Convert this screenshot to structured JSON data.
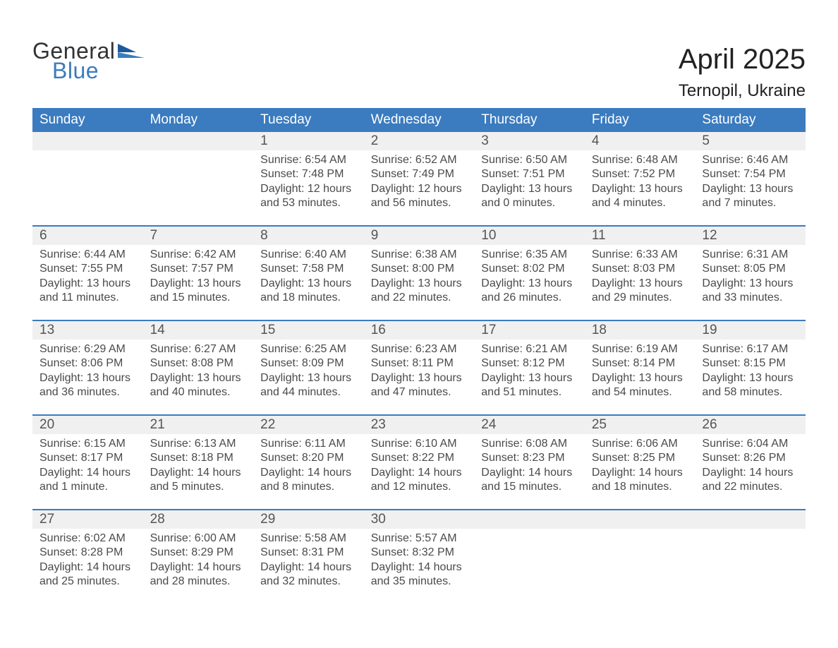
{
  "brand": {
    "word1": "General",
    "word2": "Blue",
    "color_primary": "#3b7bbf",
    "color_dark": "#1c5a9a",
    "text_color": "#333333"
  },
  "title": "April 2025",
  "location": "Ternopil, Ukraine",
  "columns": [
    "Sunday",
    "Monday",
    "Tuesday",
    "Wednesday",
    "Thursday",
    "Friday",
    "Saturday"
  ],
  "colors": {
    "header_bg": "#3b7bbf",
    "header_text": "#ffffff",
    "daynum_bg": "#f0f0f0",
    "week_divider": "#3b7bbf",
    "body_text": "#4a4a4a"
  },
  "weeks": [
    {
      "days": [
        {
          "num": "",
          "sunrise": "",
          "sunset": "",
          "daylight1": "",
          "daylight2": ""
        },
        {
          "num": "",
          "sunrise": "",
          "sunset": "",
          "daylight1": "",
          "daylight2": ""
        },
        {
          "num": "1",
          "sunrise": "Sunrise: 6:54 AM",
          "sunset": "Sunset: 7:48 PM",
          "daylight1": "Daylight: 12 hours",
          "daylight2": "and 53 minutes."
        },
        {
          "num": "2",
          "sunrise": "Sunrise: 6:52 AM",
          "sunset": "Sunset: 7:49 PM",
          "daylight1": "Daylight: 12 hours",
          "daylight2": "and 56 minutes."
        },
        {
          "num": "3",
          "sunrise": "Sunrise: 6:50 AM",
          "sunset": "Sunset: 7:51 PM",
          "daylight1": "Daylight: 13 hours",
          "daylight2": "and 0 minutes."
        },
        {
          "num": "4",
          "sunrise": "Sunrise: 6:48 AM",
          "sunset": "Sunset: 7:52 PM",
          "daylight1": "Daylight: 13 hours",
          "daylight2": "and 4 minutes."
        },
        {
          "num": "5",
          "sunrise": "Sunrise: 6:46 AM",
          "sunset": "Sunset: 7:54 PM",
          "daylight1": "Daylight: 13 hours",
          "daylight2": "and 7 minutes."
        }
      ]
    },
    {
      "days": [
        {
          "num": "6",
          "sunrise": "Sunrise: 6:44 AM",
          "sunset": "Sunset: 7:55 PM",
          "daylight1": "Daylight: 13 hours",
          "daylight2": "and 11 minutes."
        },
        {
          "num": "7",
          "sunrise": "Sunrise: 6:42 AM",
          "sunset": "Sunset: 7:57 PM",
          "daylight1": "Daylight: 13 hours",
          "daylight2": "and 15 minutes."
        },
        {
          "num": "8",
          "sunrise": "Sunrise: 6:40 AM",
          "sunset": "Sunset: 7:58 PM",
          "daylight1": "Daylight: 13 hours",
          "daylight2": "and 18 minutes."
        },
        {
          "num": "9",
          "sunrise": "Sunrise: 6:38 AM",
          "sunset": "Sunset: 8:00 PM",
          "daylight1": "Daylight: 13 hours",
          "daylight2": "and 22 minutes."
        },
        {
          "num": "10",
          "sunrise": "Sunrise: 6:35 AM",
          "sunset": "Sunset: 8:02 PM",
          "daylight1": "Daylight: 13 hours",
          "daylight2": "and 26 minutes."
        },
        {
          "num": "11",
          "sunrise": "Sunrise: 6:33 AM",
          "sunset": "Sunset: 8:03 PM",
          "daylight1": "Daylight: 13 hours",
          "daylight2": "and 29 minutes."
        },
        {
          "num": "12",
          "sunrise": "Sunrise: 6:31 AM",
          "sunset": "Sunset: 8:05 PM",
          "daylight1": "Daylight: 13 hours",
          "daylight2": "and 33 minutes."
        }
      ]
    },
    {
      "days": [
        {
          "num": "13",
          "sunrise": "Sunrise: 6:29 AM",
          "sunset": "Sunset: 8:06 PM",
          "daylight1": "Daylight: 13 hours",
          "daylight2": "and 36 minutes."
        },
        {
          "num": "14",
          "sunrise": "Sunrise: 6:27 AM",
          "sunset": "Sunset: 8:08 PM",
          "daylight1": "Daylight: 13 hours",
          "daylight2": "and 40 minutes."
        },
        {
          "num": "15",
          "sunrise": "Sunrise: 6:25 AM",
          "sunset": "Sunset: 8:09 PM",
          "daylight1": "Daylight: 13 hours",
          "daylight2": "and 44 minutes."
        },
        {
          "num": "16",
          "sunrise": "Sunrise: 6:23 AM",
          "sunset": "Sunset: 8:11 PM",
          "daylight1": "Daylight: 13 hours",
          "daylight2": "and 47 minutes."
        },
        {
          "num": "17",
          "sunrise": "Sunrise: 6:21 AM",
          "sunset": "Sunset: 8:12 PM",
          "daylight1": "Daylight: 13 hours",
          "daylight2": "and 51 minutes."
        },
        {
          "num": "18",
          "sunrise": "Sunrise: 6:19 AM",
          "sunset": "Sunset: 8:14 PM",
          "daylight1": "Daylight: 13 hours",
          "daylight2": "and 54 minutes."
        },
        {
          "num": "19",
          "sunrise": "Sunrise: 6:17 AM",
          "sunset": "Sunset: 8:15 PM",
          "daylight1": "Daylight: 13 hours",
          "daylight2": "and 58 minutes."
        }
      ]
    },
    {
      "days": [
        {
          "num": "20",
          "sunrise": "Sunrise: 6:15 AM",
          "sunset": "Sunset: 8:17 PM",
          "daylight1": "Daylight: 14 hours",
          "daylight2": "and 1 minute."
        },
        {
          "num": "21",
          "sunrise": "Sunrise: 6:13 AM",
          "sunset": "Sunset: 8:18 PM",
          "daylight1": "Daylight: 14 hours",
          "daylight2": "and 5 minutes."
        },
        {
          "num": "22",
          "sunrise": "Sunrise: 6:11 AM",
          "sunset": "Sunset: 8:20 PM",
          "daylight1": "Daylight: 14 hours",
          "daylight2": "and 8 minutes."
        },
        {
          "num": "23",
          "sunrise": "Sunrise: 6:10 AM",
          "sunset": "Sunset: 8:22 PM",
          "daylight1": "Daylight: 14 hours",
          "daylight2": "and 12 minutes."
        },
        {
          "num": "24",
          "sunrise": "Sunrise: 6:08 AM",
          "sunset": "Sunset: 8:23 PM",
          "daylight1": "Daylight: 14 hours",
          "daylight2": "and 15 minutes."
        },
        {
          "num": "25",
          "sunrise": "Sunrise: 6:06 AM",
          "sunset": "Sunset: 8:25 PM",
          "daylight1": "Daylight: 14 hours",
          "daylight2": "and 18 minutes."
        },
        {
          "num": "26",
          "sunrise": "Sunrise: 6:04 AM",
          "sunset": "Sunset: 8:26 PM",
          "daylight1": "Daylight: 14 hours",
          "daylight2": "and 22 minutes."
        }
      ]
    },
    {
      "days": [
        {
          "num": "27",
          "sunrise": "Sunrise: 6:02 AM",
          "sunset": "Sunset: 8:28 PM",
          "daylight1": "Daylight: 14 hours",
          "daylight2": "and 25 minutes."
        },
        {
          "num": "28",
          "sunrise": "Sunrise: 6:00 AM",
          "sunset": "Sunset: 8:29 PM",
          "daylight1": "Daylight: 14 hours",
          "daylight2": "and 28 minutes."
        },
        {
          "num": "29",
          "sunrise": "Sunrise: 5:58 AM",
          "sunset": "Sunset: 8:31 PM",
          "daylight1": "Daylight: 14 hours",
          "daylight2": "and 32 minutes."
        },
        {
          "num": "30",
          "sunrise": "Sunrise: 5:57 AM",
          "sunset": "Sunset: 8:32 PM",
          "daylight1": "Daylight: 14 hours",
          "daylight2": "and 35 minutes."
        },
        {
          "num": "",
          "sunrise": "",
          "sunset": "",
          "daylight1": "",
          "daylight2": ""
        },
        {
          "num": "",
          "sunrise": "",
          "sunset": "",
          "daylight1": "",
          "daylight2": ""
        },
        {
          "num": "",
          "sunrise": "",
          "sunset": "",
          "daylight1": "",
          "daylight2": ""
        }
      ]
    }
  ]
}
